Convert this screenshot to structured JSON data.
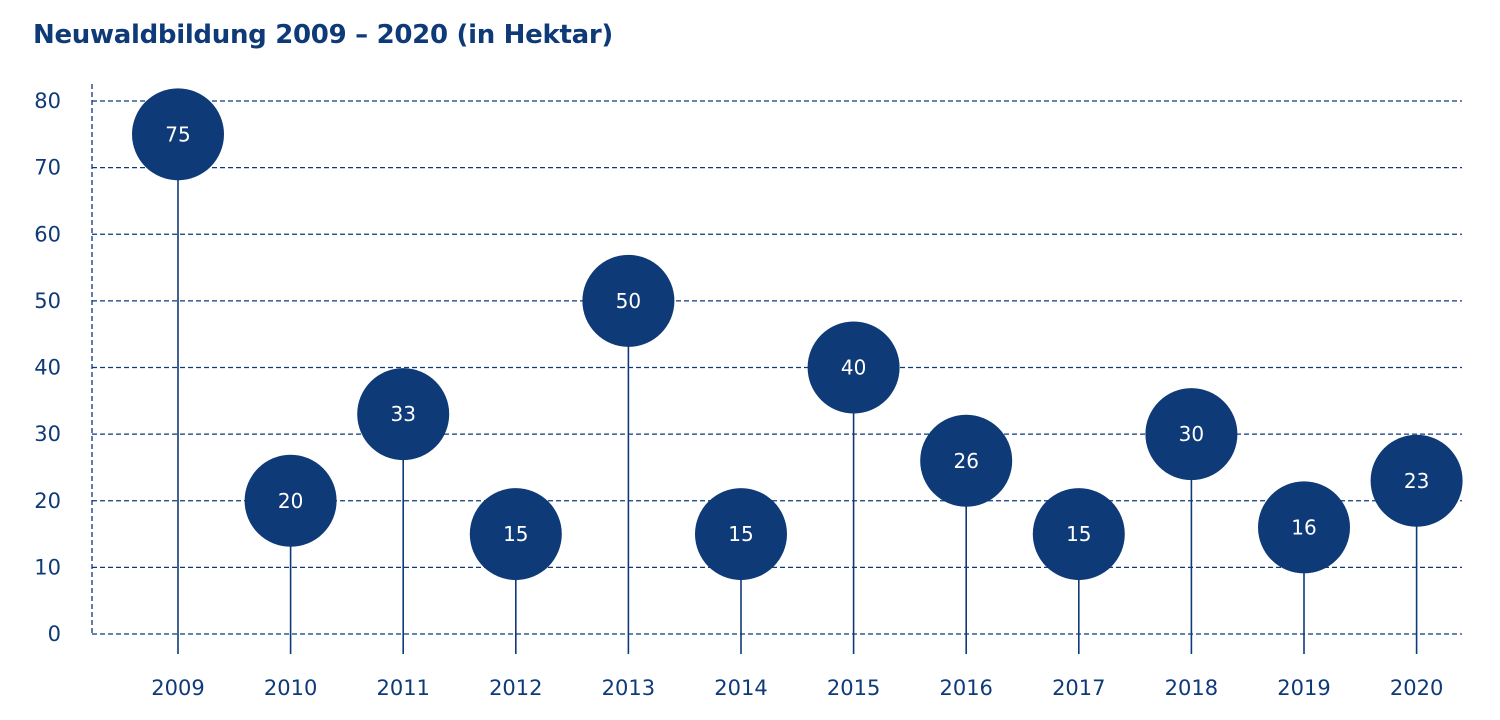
{
  "chart_data": {
    "type": "scatter",
    "title": "Neuwaldbildung 2009 – 2020 (in Hektar)",
    "xlabel": "",
    "ylabel": "",
    "categories": [
      "2009",
      "2010",
      "2011",
      "2012",
      "2013",
      "2014",
      "2015",
      "2016",
      "2017",
      "2018",
      "2019",
      "2020"
    ],
    "values": [
      75,
      20,
      33,
      15,
      50,
      15,
      40,
      26,
      15,
      30,
      16,
      23
    ],
    "labels": [
      "75",
      "20",
      "33",
      "15",
      "50",
      "15",
      "40",
      "26",
      "15",
      "30",
      "16",
      "23"
    ],
    "yticks": [
      "0",
      "10",
      "20",
      "30",
      "40",
      "50",
      "60",
      "70",
      "80"
    ],
    "ylim": [
      0,
      80
    ],
    "grid": true,
    "legend": "none"
  },
  "colors": {
    "primary": "#0f3a78",
    "grid": "#0f3a78",
    "label_on_bubble": "#ffffff",
    "background": "#ffffff"
  }
}
